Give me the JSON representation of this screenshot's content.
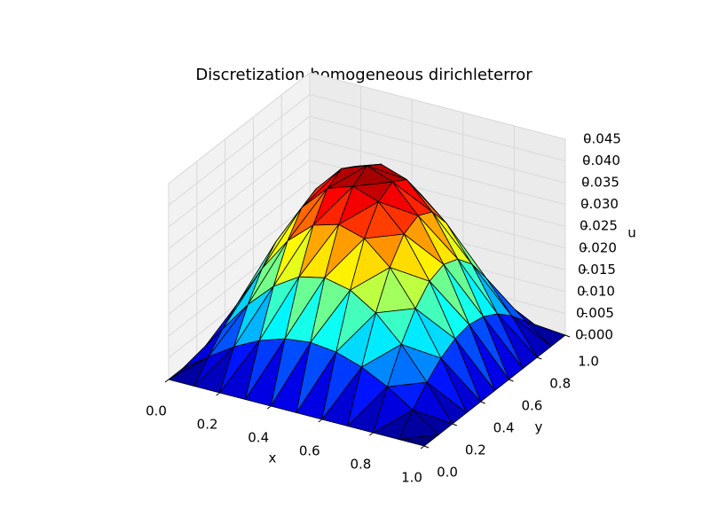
{
  "chart_data": {
    "type": "surface",
    "title": "Discretization homogeneous dirichleterror",
    "xlabel": "x",
    "ylabel": "y",
    "zlabel": "u",
    "x": [
      0,
      0.1,
      0.2,
      0.3,
      0.4,
      0.5,
      0.6,
      0.7,
      0.8,
      0.9,
      1
    ],
    "y": [
      0,
      0.1,
      0.2,
      0.3,
      0.4,
      0.5,
      0.6,
      0.7,
      0.8,
      0.9,
      1
    ],
    "z": [
      [
        0,
        0,
        0,
        0,
        0,
        0,
        0,
        0,
        0,
        0,
        0
      ],
      [
        0,
        0.0042,
        0.008,
        0.011,
        0.0129,
        0.0136,
        0.0129,
        0.011,
        0.008,
        0.0042,
        0
      ],
      [
        0,
        0.008,
        0.0152,
        0.0209,
        0.0246,
        0.0259,
        0.0246,
        0.0209,
        0.0152,
        0.008,
        0
      ],
      [
        0,
        0.011,
        0.0209,
        0.0288,
        0.0339,
        0.0356,
        0.0339,
        0.0288,
        0.0209,
        0.011,
        0
      ],
      [
        0,
        0.0129,
        0.0246,
        0.0339,
        0.0398,
        0.0418,
        0.0398,
        0.0339,
        0.0246,
        0.0129,
        0
      ],
      [
        0,
        0.0136,
        0.0259,
        0.0356,
        0.0418,
        0.044,
        0.0418,
        0.0356,
        0.0259,
        0.0136,
        0
      ],
      [
        0,
        0.0129,
        0.0246,
        0.0339,
        0.0398,
        0.0418,
        0.0398,
        0.0339,
        0.0246,
        0.0129,
        0
      ],
      [
        0,
        0.011,
        0.0209,
        0.0288,
        0.0339,
        0.0356,
        0.0339,
        0.0288,
        0.0209,
        0.011,
        0
      ],
      [
        0,
        0.008,
        0.0152,
        0.0209,
        0.0246,
        0.0259,
        0.0246,
        0.0209,
        0.0152,
        0.008,
        0
      ],
      [
        0,
        0.0042,
        0.008,
        0.011,
        0.0129,
        0.0136,
        0.0129,
        0.011,
        0.008,
        0.0042,
        0
      ],
      [
        0,
        0,
        0,
        0,
        0,
        0,
        0,
        0,
        0,
        0,
        0
      ]
    ],
    "colormap": "jet",
    "xlim": [
      0,
      1
    ],
    "ylim": [
      0,
      1
    ],
    "zlim": [
      0,
      0.045
    ],
    "xticks": [
      {
        "value": 0,
        "label": "0.0"
      },
      0.2,
      0.4,
      0.6,
      0.8,
      {
        "value": 1,
        "label": "1.0"
      }
    ],
    "yticks": [
      {
        "value": 0,
        "label": "0.0"
      },
      0.2,
      0.4,
      0.6,
      0.8,
      {
        "value": 1,
        "label": "1.0"
      }
    ],
    "zticks": [
      {
        "value": 0,
        "label": "0.000"
      },
      0.005,
      {
        "value": 0.01,
        "label": "0.010"
      },
      0.015,
      {
        "value": 0.02,
        "label": "0.020"
      },
      0.025,
      {
        "value": 0.03,
        "label": "0.030"
      },
      0.035,
      {
        "value": 0.04,
        "label": "0.040"
      },
      0.045
    ],
    "grid": true
  }
}
